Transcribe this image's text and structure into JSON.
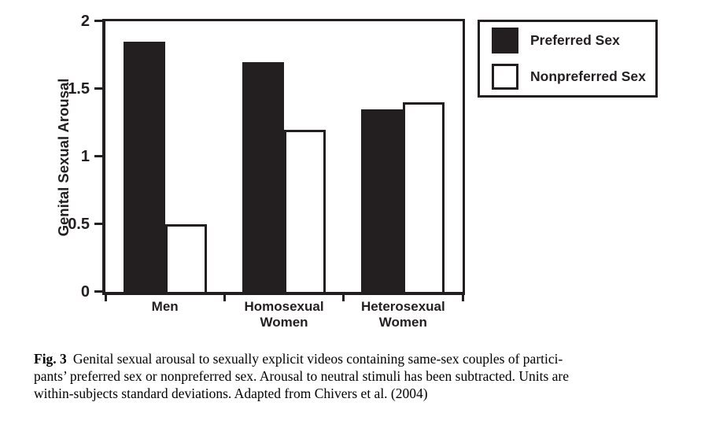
{
  "chart_data": {
    "type": "bar",
    "title": "",
    "xlabel": "",
    "ylabel": "Genital Sexual Arousal",
    "categories": [
      "Men",
      "Homosexual Women",
      "Heterosexual Women"
    ],
    "category_label_lines": [
      [
        "Men"
      ],
      [
        "Homosexual",
        "Women"
      ],
      [
        "Heterosexual",
        "Women"
      ]
    ],
    "series": [
      {
        "name": "Preferred Sex",
        "fill": "solid",
        "color": "#231f20",
        "values": [
          1.85,
          1.7,
          1.35
        ]
      },
      {
        "name": "Nonpreferred Sex",
        "fill": "outline",
        "color": "#ffffff",
        "values": [
          0.5,
          1.2,
          1.4
        ]
      }
    ],
    "ylim": [
      0,
      2
    ],
    "yticks": [
      0,
      0.5,
      1,
      1.5,
      2
    ],
    "ytick_labels": [
      "0",
      "0.5",
      "1",
      "1.5",
      "2"
    ],
    "grid": false,
    "legend_position": "outside-top-right"
  },
  "legend": {
    "items": [
      {
        "label": "Preferred Sex",
        "swatch": "black"
      },
      {
        "label": "Nonpreferred Sex",
        "swatch": "white"
      }
    ]
  },
  "caption": {
    "label": "Fig. 3",
    "lines": [
      "Genital sexual arousal to sexually explicit videos containing same-sex couples of partici-",
      "pants’ preferred sex or nonpreferred sex. Arousal to neutral stimuli has been subtracted. Units are",
      "within-subjects standard deviations. Adapted from Chivers et al. (2004)"
    ]
  },
  "colors": {
    "ink": "#231f20",
    "background": "#ffffff"
  }
}
